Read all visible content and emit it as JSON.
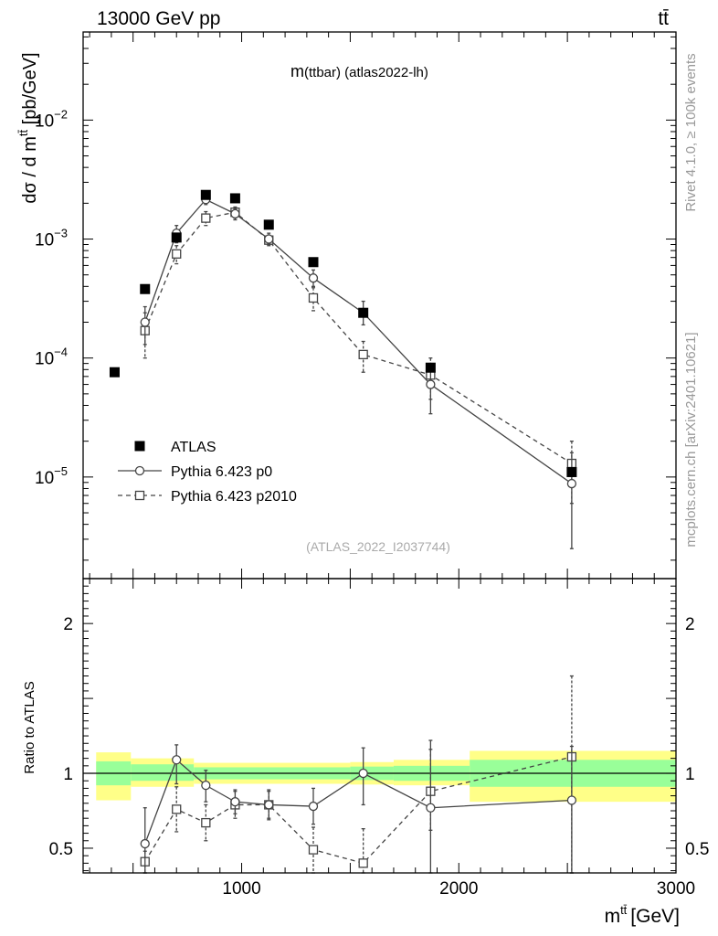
{
  "header": {
    "energy_label": "13000 GeV pp",
    "process_label": "tt̄"
  },
  "side_labels": {
    "rivet": "Rivet 4.1.0, ≥ 100k events",
    "mcplots": "mcplots.cern.ch [arXiv:2401.10621]"
  },
  "colors": {
    "band_inner": "#99ff99",
    "band_outer": "#ffff88",
    "data": "#000000",
    "mc": "#444444",
    "watermark": "#aaaaaa",
    "side_text": "#999999"
  },
  "chart_data": [
    {
      "type": "scatter",
      "panel": "main",
      "title_main": "m",
      "title_rest": "(ttbar) (atlas2022-lh)",
      "watermark": "(ATLAS_2022_I2037744)",
      "ylabel": "dσ / d m^tt̄ [pb/GeV]",
      "yscale": "log",
      "xlim": [
        270,
        3000
      ],
      "ylim": [
        1.4e-06,
        0.055
      ],
      "y_ticks": [
        {
          "value": 1e-05,
          "base": "10",
          "exp": "−5"
        },
        {
          "value": 0.0001,
          "base": "10",
          "exp": "−4"
        },
        {
          "value": 0.001,
          "base": "10",
          "exp": "−3"
        },
        {
          "value": 0.01,
          "base": "10",
          "exp": "−2"
        }
      ],
      "legend": {
        "position": "lower-left",
        "entries": [
          {
            "label": "ATLAS",
            "style": "data"
          },
          {
            "label": "Pythia 6.423 p0",
            "style": "mc-solid"
          },
          {
            "label": "Pythia 6.423 p2010",
            "style": "mc-dashed"
          }
        ]
      },
      "series": [
        {
          "name": "ATLAS",
          "marker": "filled-square",
          "x": [
            415,
            555,
            700,
            835,
            970,
            1125,
            1330,
            1560,
            1870,
            2520
          ],
          "y": [
            7.6e-05,
            0.00038,
            0.00103,
            0.00235,
            0.0022,
            0.00132,
            0.00064,
            0.00024,
            8.3e-05,
            1.1e-05
          ]
        },
        {
          "name": "Pythia 6.423 p0",
          "marker": "open-circle",
          "line": "solid",
          "x": [
            555,
            700,
            835,
            970,
            1125,
            1330,
            1560,
            1870,
            2520
          ],
          "y": [
            0.0002,
            0.00112,
            0.00215,
            0.00163,
            0.001,
            0.00047,
            0.00024,
            6e-05,
            8.8e-06
          ],
          "ylo": [
            0.00013,
            0.00093,
            0.00195,
            0.00145,
            0.0009,
            0.0004,
            0.00019,
            3.4e-05,
            2.5e-06
          ],
          "yhi": [
            0.00027,
            0.0013,
            0.00235,
            0.0018,
            0.00112,
            0.00055,
            0.0003,
            8.6e-05,
            1.6e-05
          ]
        },
        {
          "name": "Pythia 6.423 p2010",
          "marker": "open-square",
          "line": "dashed",
          "x": [
            555,
            700,
            835,
            970,
            1125,
            1330,
            1560,
            1870,
            2520
          ],
          "y": [
            0.00017,
            0.00075,
            0.0015,
            0.00168,
            0.00098,
            0.00032,
            0.000107,
            7.2e-05,
            1.3e-05
          ],
          "ylo": [
            0.0001,
            0.00062,
            0.0013,
            0.0015,
            0.00088,
            0.00025,
            7.6e-05,
            4.5e-05,
            6e-06
          ],
          "yhi": [
            0.00024,
            0.00088,
            0.0017,
            0.00186,
            0.00108,
            0.00039,
            0.000138,
            0.0001,
            2e-05
          ]
        }
      ]
    },
    {
      "type": "scatter",
      "panel": "ratio",
      "ylabel": "Ratio to ATLAS",
      "xlabel_main": "m",
      "xlabel_sup": "tt̄",
      "xlabel_unit": "[GeV]",
      "xlim": [
        270,
        3000
      ],
      "ylim": [
        0.335,
        2.3
      ],
      "x_ticks": [
        {
          "value": 1000,
          "label": "1000"
        },
        {
          "value": 2000,
          "label": "2000"
        },
        {
          "value": 3000,
          "label": "3000"
        }
      ],
      "y_ticks": [
        {
          "value": 0.5,
          "label": "0.5"
        },
        {
          "value": 1,
          "label": "1"
        },
        {
          "value": 2,
          "label": "2"
        }
      ],
      "bands": [
        {
          "x0": 330,
          "x1": 490,
          "inner": [
            0.92,
            1.08
          ],
          "outer": [
            0.82,
            1.14
          ]
        },
        {
          "x0": 490,
          "x1": 780,
          "inner": [
            0.95,
            1.06
          ],
          "outer": [
            0.91,
            1.1
          ]
        },
        {
          "x0": 780,
          "x1": 1500,
          "inner": [
            0.96,
            1.04
          ],
          "outer": [
            0.93,
            1.07
          ]
        },
        {
          "x0": 1500,
          "x1": 1700,
          "inner": [
            0.955,
            1.045
          ],
          "outer": [
            0.925,
            1.075
          ]
        },
        {
          "x0": 1700,
          "x1": 2050,
          "inner": [
            0.95,
            1.05
          ],
          "outer": [
            0.92,
            1.09
          ]
        },
        {
          "x0": 2050,
          "x1": 3000,
          "inner": [
            0.91,
            1.09
          ],
          "outer": [
            0.81,
            1.15
          ]
        }
      ],
      "series": [
        {
          "name": "Pythia 6.423 p0",
          "marker": "open-circle",
          "line": "solid",
          "x": [
            555,
            700,
            835,
            970,
            1125,
            1330,
            1560,
            1870,
            2520
          ],
          "y": [
            0.53,
            1.09,
            0.92,
            0.81,
            0.79,
            0.78,
            1.0,
            0.77,
            0.82
          ],
          "ylo": [
            0.33,
            0.93,
            0.81,
            0.73,
            0.69,
            0.66,
            0.79,
            0.33,
            0.33
          ],
          "yhi": [
            0.77,
            1.19,
            1.02,
            0.89,
            0.89,
            0.9,
            1.17,
            1.22,
            1.18
          ]
        },
        {
          "name": "Pythia 6.423 p2010",
          "marker": "open-square",
          "line": "dashed",
          "x": [
            555,
            700,
            835,
            970,
            1125,
            1330,
            1560,
            1870,
            2520
          ],
          "y": [
            0.41,
            0.76,
            0.67,
            0.79,
            0.79,
            0.49,
            0.4,
            0.88,
            1.11
          ],
          "ylo": [
            0.33,
            0.61,
            0.55,
            0.7,
            0.7,
            0.33,
            0.33,
            0.62,
            0.33
          ],
          "yhi": [
            0.48,
            0.91,
            0.79,
            0.88,
            0.88,
            0.64,
            0.63,
            1.16,
            1.65
          ]
        }
      ]
    }
  ]
}
